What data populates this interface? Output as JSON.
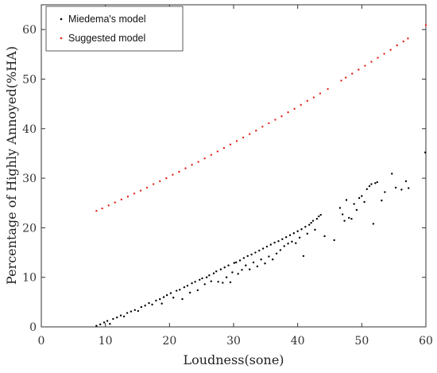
{
  "chart_data": {
    "type": "scatter",
    "xlabel": "Loudness(sone)",
    "ylabel": "Percentage of Highly Annoyed(%HA)",
    "xlim": [
      0,
      60
    ],
    "ylim": [
      0,
      65
    ],
    "xticks": [
      "0",
      "10",
      "20",
      "30",
      "40",
      "50",
      "60"
    ],
    "yticks": [
      "0",
      "10",
      "20",
      "30",
      "40",
      "50",
      "60"
    ],
    "grid": false,
    "legend_position": "top-left",
    "series": [
      {
        "name": "Miedema's model",
        "color": "#000000",
        "points": [
          [
            8.6,
            0.2
          ],
          [
            9.2,
            0.5
          ],
          [
            9.8,
            0.9
          ],
          [
            10.3,
            1.2
          ],
          [
            10.7,
            0.6
          ],
          [
            11.2,
            1.6
          ],
          [
            11.8,
            1.9
          ],
          [
            12.4,
            2.3
          ],
          [
            12.9,
            2.1
          ],
          [
            13.4,
            2.8
          ],
          [
            14.0,
            3.1
          ],
          [
            14.6,
            3.4
          ],
          [
            15.1,
            3.2
          ],
          [
            15.6,
            4.0
          ],
          [
            16.2,
            4.3
          ],
          [
            16.8,
            4.8
          ],
          [
            17.3,
            4.5
          ],
          [
            17.9,
            5.3
          ],
          [
            18.5,
            5.6
          ],
          [
            18.8,
            4.7
          ],
          [
            19.1,
            6.0
          ],
          [
            19.6,
            6.4
          ],
          [
            20.2,
            6.8
          ],
          [
            20.6,
            5.9
          ],
          [
            21.1,
            7.3
          ],
          [
            21.6,
            7.5
          ],
          [
            22.0,
            5.6
          ],
          [
            22.3,
            8.0
          ],
          [
            22.8,
            8.3
          ],
          [
            23.2,
            6.9
          ],
          [
            23.5,
            8.8
          ],
          [
            24.0,
            9.1
          ],
          [
            24.4,
            7.4
          ],
          [
            24.7,
            9.5
          ],
          [
            25.1,
            9.8
          ],
          [
            25.5,
            8.6
          ],
          [
            25.8,
            10.0
          ],
          [
            26.2,
            10.4
          ],
          [
            26.5,
            9.2
          ],
          [
            26.9,
            10.8
          ],
          [
            27.3,
            11.2
          ],
          [
            27.6,
            9.1
          ],
          [
            28.0,
            11.6
          ],
          [
            28.3,
            8.9
          ],
          [
            28.6,
            12.0
          ],
          [
            28.9,
            10.0
          ],
          [
            29.2,
            12.4
          ],
          [
            29.5,
            9.0
          ],
          [
            29.8,
            11.0
          ],
          [
            30.1,
            12.9
          ],
          [
            30.4,
            13.0
          ],
          [
            30.7,
            10.7
          ],
          [
            31.0,
            13.4
          ],
          [
            31.3,
            11.5
          ],
          [
            31.6,
            13.9
          ],
          [
            31.9,
            12.4
          ],
          [
            32.2,
            14.3
          ],
          [
            32.5,
            11.6
          ],
          [
            32.8,
            14.6
          ],
          [
            33.1,
            13.0
          ],
          [
            33.4,
            15.0
          ],
          [
            33.7,
            12.2
          ],
          [
            34.0,
            15.4
          ],
          [
            34.3,
            13.6
          ],
          [
            34.6,
            15.8
          ],
          [
            34.9,
            12.8
          ],
          [
            35.2,
            16.2
          ],
          [
            35.5,
            14.2
          ],
          [
            35.8,
            16.6
          ],
          [
            36.1,
            13.6
          ],
          [
            36.4,
            17.0
          ],
          [
            36.7,
            14.8
          ],
          [
            37.0,
            17.3
          ],
          [
            37.3,
            15.5
          ],
          [
            37.6,
            17.7
          ],
          [
            37.9,
            16.3
          ],
          [
            38.2,
            18.1
          ],
          [
            38.5,
            16.8
          ],
          [
            38.8,
            18.5
          ],
          [
            39.1,
            17.2
          ],
          [
            39.4,
            18.9
          ],
          [
            39.7,
            16.9
          ],
          [
            40.0,
            19.3
          ],
          [
            40.3,
            18.0
          ],
          [
            40.6,
            19.7
          ],
          [
            40.9,
            14.3
          ],
          [
            41.2,
            20.2
          ],
          [
            41.5,
            18.8
          ],
          [
            41.8,
            20.6
          ],
          [
            42.1,
            21.0
          ],
          [
            42.4,
            21.4
          ],
          [
            42.7,
            19.6
          ],
          [
            43.0,
            21.8
          ],
          [
            43.3,
            22.3
          ],
          [
            43.6,
            22.6
          ],
          [
            44.2,
            18.3
          ],
          [
            45.7,
            17.5
          ],
          [
            46.6,
            24.0
          ],
          [
            47.0,
            22.7
          ],
          [
            47.3,
            21.4
          ],
          [
            47.6,
            25.6
          ],
          [
            48.0,
            22.0
          ],
          [
            48.4,
            21.8
          ],
          [
            48.8,
            24.8
          ],
          [
            49.2,
            23.6
          ],
          [
            49.6,
            26.0
          ],
          [
            50.0,
            26.4
          ],
          [
            50.4,
            25.2
          ],
          [
            50.8,
            27.8
          ],
          [
            51.2,
            28.4
          ],
          [
            51.5,
            28.8
          ],
          [
            51.8,
            20.8
          ],
          [
            52.1,
            29.0
          ],
          [
            52.4,
            29.2
          ],
          [
            53.1,
            25.5
          ],
          [
            53.6,
            27.2
          ],
          [
            54.7,
            30.9
          ],
          [
            55.3,
            28.1
          ],
          [
            56.2,
            27.7
          ],
          [
            56.9,
            29.4
          ],
          [
            57.3,
            28.0
          ],
          [
            59.9,
            35.2
          ]
        ]
      },
      {
        "name": "Suggested model",
        "color": "#e2231a",
        "points": [
          [
            8.6,
            23.4
          ],
          [
            9.5,
            23.9
          ],
          [
            10.5,
            24.5
          ],
          [
            11.5,
            25.1
          ],
          [
            12.5,
            25.7
          ],
          [
            13.5,
            26.3
          ],
          [
            14.5,
            26.9
          ],
          [
            15.5,
            27.5
          ],
          [
            16.5,
            28.1
          ],
          [
            17.5,
            28.8
          ],
          [
            18.5,
            29.4
          ],
          [
            19.5,
            30.0
          ],
          [
            20.5,
            30.7
          ],
          [
            21.5,
            31.3
          ],
          [
            22.5,
            32.0
          ],
          [
            23.5,
            32.7
          ],
          [
            24.5,
            33.3
          ],
          [
            25.5,
            34.0
          ],
          [
            26.5,
            34.7
          ],
          [
            27.5,
            35.4
          ],
          [
            28.5,
            36.1
          ],
          [
            29.5,
            36.8
          ],
          [
            30.5,
            37.5
          ],
          [
            31.5,
            38.2
          ],
          [
            32.5,
            38.9
          ],
          [
            33.5,
            39.6
          ],
          [
            34.5,
            40.4
          ],
          [
            35.5,
            41.1
          ],
          [
            36.5,
            41.8
          ],
          [
            37.5,
            42.5
          ],
          [
            38.5,
            43.3
          ],
          [
            39.5,
            44.0
          ],
          [
            40.5,
            44.8
          ],
          [
            41.5,
            45.6
          ],
          [
            42.5,
            46.3
          ],
          [
            43.5,
            47.1
          ],
          [
            44.7,
            48.0
          ],
          [
            46.8,
            49.7
          ],
          [
            47.5,
            50.3
          ],
          [
            48.5,
            51.1
          ],
          [
            49.5,
            51.9
          ],
          [
            50.5,
            52.7
          ],
          [
            51.5,
            53.5
          ],
          [
            52.5,
            54.3
          ],
          [
            53.5,
            55.1
          ],
          [
            54.5,
            55.9
          ],
          [
            55.5,
            56.8
          ],
          [
            56.5,
            57.6
          ],
          [
            57.2,
            58.2
          ],
          [
            60.0,
            60.9
          ]
        ]
      }
    ]
  }
}
